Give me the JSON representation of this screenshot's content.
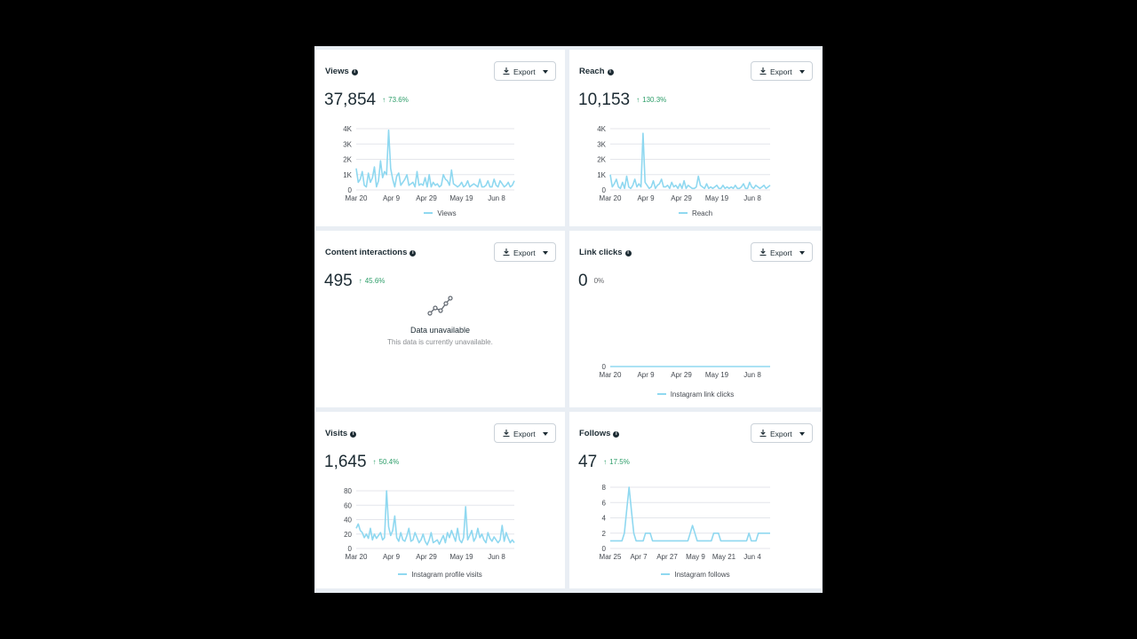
{
  "ui": {
    "export_label": "Export"
  },
  "cards": {
    "views": {
      "title": "Views",
      "value": "37,854",
      "delta": "73.6%",
      "chart_data": {
        "type": "line",
        "ylim": [
          0,
          4000
        ],
        "yticks": [
          "0",
          "1K",
          "2K",
          "3K",
          "4K"
        ],
        "ytick_values": [
          0,
          1000,
          2000,
          3000,
          4000
        ],
        "xticks": [
          "Mar 20",
          "Apr 9",
          "Apr 29",
          "May 19",
          "Jun 8"
        ],
        "series": [
          {
            "name": "Views",
            "values": [
              1400,
              500,
              700,
              1200,
              300,
              200,
              1100,
              500,
              800,
              1500,
              200,
              600,
              1900,
              800,
              1200,
              1000,
              3900,
              1400,
              700,
              200,
              900,
              1100,
              300,
              500,
              700,
              1000,
              300,
              400,
              500,
              200,
              1200,
              300,
              400,
              300,
              800,
              200,
              1000,
              200,
              500,
              300,
              400,
              200,
              300,
              1000,
              700,
              600,
              300,
              1300,
              400,
              300,
              200,
              300,
              500,
              200,
              300,
              600,
              200,
              300,
              400,
              300,
              200,
              700,
              200,
              200,
              300,
              600,
              200,
              200,
              700,
              300,
              200,
              600,
              400,
              200,
              300,
              500,
              200,
              300,
              600
            ]
          }
        ]
      }
    },
    "reach": {
      "title": "Reach",
      "value": "10,153",
      "delta": "130.3%",
      "chart_data": {
        "type": "line",
        "ylim": [
          0,
          4000
        ],
        "yticks": [
          "0",
          "1K",
          "2K",
          "3K",
          "4K"
        ],
        "ytick_values": [
          0,
          1000,
          2000,
          3000,
          4000
        ],
        "xticks": [
          "Mar 20",
          "Apr 9",
          "Apr 29",
          "May 19",
          "Jun 8"
        ],
        "series": [
          {
            "name": "Reach",
            "values": [
              1000,
              200,
              400,
              700,
              200,
              100,
              500,
              100,
              900,
              200,
              100,
              300,
              700,
              200,
              400,
              200,
              3700,
              500,
              300,
              100,
              200,
              600,
              100,
              300,
              400,
              700,
              200,
              200,
              300,
              100,
              500,
              200,
              300,
              100,
              400,
              100,
              600,
              100,
              300,
              200,
              100,
              100,
              200,
              900,
              300,
              200,
              100,
              400,
              100,
              200,
              100,
              200,
              300,
              100,
              100,
              300,
              100,
              200,
              100,
              200,
              100,
              300,
              100,
              100,
              200,
              400,
              100,
              100,
              500,
              200,
              100,
              300,
              200,
              100,
              200,
              300,
              100,
              200,
              300
            ]
          }
        ]
      }
    },
    "content_interactions": {
      "title": "Content interactions",
      "value": "495",
      "delta": "45.6%",
      "unavailable_title": "Data unavailable",
      "unavailable_text": "This data is currently unavailable."
    },
    "link_clicks": {
      "title": "Link clicks",
      "value": "0",
      "delta": "0%",
      "chart_data": {
        "type": "line",
        "ylim": [
          0,
          1
        ],
        "yticks": [
          "0"
        ],
        "ytick_values": [
          0
        ],
        "xticks": [
          "Mar 20",
          "Apr 9",
          "Apr 29",
          "May 19",
          "Jun 8"
        ],
        "series": [
          {
            "name": "Instagram link clicks",
            "values": [
              0,
              0,
              0,
              0,
              0,
              0,
              0,
              0,
              0,
              0,
              0,
              0,
              0,
              0,
              0,
              0,
              0,
              0,
              0,
              0,
              0,
              0,
              0,
              0,
              0,
              0,
              0,
              0,
              0,
              0,
              0,
              0,
              0,
              0,
              0,
              0,
              0,
              0,
              0,
              0,
              0,
              0,
              0,
              0,
              0,
              0,
              0,
              0,
              0,
              0,
              0,
              0,
              0,
              0,
              0,
              0,
              0,
              0,
              0,
              0,
              0,
              0,
              0,
              0,
              0,
              0,
              0,
              0,
              0,
              0,
              0,
              0,
              0,
              0,
              0,
              0,
              0,
              0,
              0,
              0
            ]
          }
        ]
      }
    },
    "visits": {
      "title": "Visits",
      "value": "1,645",
      "delta": "50.4%",
      "chart_data": {
        "type": "line",
        "ylim": [
          0,
          80
        ],
        "yticks": [
          "0",
          "20",
          "40",
          "60",
          "80"
        ],
        "ytick_values": [
          0,
          20,
          40,
          60,
          80
        ],
        "xticks": [
          "Mar 20",
          "Apr 9",
          "Apr 29",
          "May 19",
          "Jun 8"
        ],
        "series": [
          {
            "name": "Instagram profile visits",
            "values": [
              28,
              34,
              25,
              22,
              15,
              20,
              14,
              28,
              12,
              20,
              14,
              18,
              22,
              12,
              15,
              80,
              30,
              18,
              25,
              45,
              15,
              10,
              22,
              12,
              10,
              18,
              28,
              10,
              12,
              22,
              15,
              8,
              12,
              20,
              10,
              5,
              12,
              22,
              8,
              10,
              12,
              6,
              12,
              18,
              8,
              22,
              15,
              25,
              18,
              10,
              28,
              12,
              8,
              15,
              58,
              12,
              18,
              25,
              10,
              15,
              28,
              15,
              20,
              12,
              8,
              22,
              14,
              10,
              16,
              12,
              8,
              12,
              32,
              10,
              22,
              14,
              8,
              12,
              8
            ]
          }
        ]
      }
    },
    "follows": {
      "title": "Follows",
      "value": "47",
      "delta": "17.5%",
      "chart_data": {
        "type": "line",
        "ylim": [
          0,
          8
        ],
        "yticks": [
          "0",
          "2",
          "4",
          "6",
          "8"
        ],
        "ytick_values": [
          0,
          2,
          4,
          6,
          8
        ],
        "xticks": [
          "Mar 25",
          "Apr 7",
          "Apr 27",
          "May 9",
          "May 21",
          "Jun 4"
        ],
        "series": [
          {
            "name": "Instagram follows",
            "values": [
              1,
              1,
              1,
              1,
              1,
              1,
              2,
              5,
              8,
              5,
              2,
              1,
              1,
              1,
              1,
              2,
              2,
              2,
              1,
              1,
              1,
              1,
              1,
              1,
              1,
              1,
              1,
              1,
              1,
              1,
              1,
              1,
              1,
              1,
              2,
              3,
              2,
              1,
              1,
              1,
              1,
              1,
              1,
              1,
              2,
              2,
              2,
              1,
              1,
              1,
              1,
              1,
              1,
              1,
              1,
              1,
              1,
              1,
              1,
              2,
              1,
              1,
              1,
              2,
              2,
              2,
              2,
              2,
              2
            ]
          }
        ]
      }
    }
  }
}
